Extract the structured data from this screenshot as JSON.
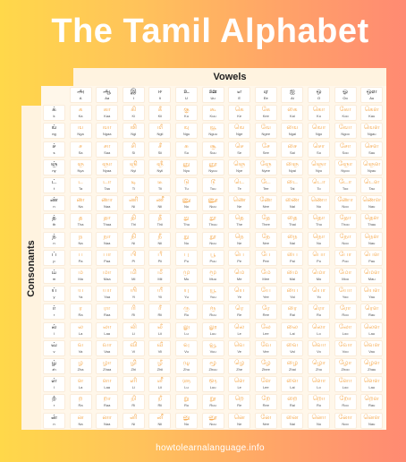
{
  "title": "The Tamil Alphabet",
  "vowels_label": "Vowels",
  "consonants_label": "Consonants",
  "footer": "howtolearnalanguage.info",
  "vowels": {
    "tamil": [
      "அ",
      "ஆ",
      "இ",
      "ஈ",
      "உ",
      "ஊ",
      "எ",
      "ஏ",
      "ஐ",
      "ஒ",
      "ஓ",
      "ஔ"
    ],
    "roman": [
      "A",
      "Aa",
      "I",
      "Ii",
      "U",
      "Uu",
      "E",
      "Ee",
      "Ai",
      "O",
      "Oo",
      "Au"
    ]
  },
  "rows": [
    {
      "head": {
        "tamil": "க்",
        "roman": "k"
      },
      "tamil": [
        "க",
        "கா",
        "கி",
        "கீ",
        "கு",
        "கூ",
        "கெ",
        "கே",
        "கை",
        "கொ",
        "கோ",
        "கௌ"
      ],
      "roman": [
        "Ka",
        "Kaa",
        "Ki",
        "Kii",
        "Ku",
        "Kuu",
        "Ke",
        "Kee",
        "Kai",
        "Ko",
        "Koo",
        "Kau"
      ]
    },
    {
      "head": {
        "tamil": "ங்",
        "roman": "ng"
      },
      "tamil": [
        "ங",
        "ஙா",
        "ஙி",
        "ஙீ",
        "ஙு",
        "ஙூ",
        "ஙெ",
        "ஙே",
        "ஙை",
        "ஙொ",
        "ஙோ",
        "ஙௌ"
      ],
      "roman": [
        "Nga",
        "Ngaa",
        "Ngi",
        "Ngii",
        "Ngu",
        "Nguu",
        "Nge",
        "Ngee",
        "Ngai",
        "Ngo",
        "Ngoo",
        "Ngau"
      ]
    },
    {
      "head": {
        "tamil": "ச்",
        "roman": "s"
      },
      "tamil": [
        "ச",
        "சா",
        "சி",
        "சீ",
        "சு",
        "சூ",
        "செ",
        "சே",
        "சை",
        "சொ",
        "சோ",
        "சௌ"
      ],
      "roman": [
        "Sa",
        "Saa",
        "Si",
        "Sii",
        "Su",
        "Suu",
        "Se",
        "See",
        "Sai",
        "So",
        "Soo",
        "Sau"
      ]
    },
    {
      "head": {
        "tamil": "ஞ்",
        "roman": "ny"
      },
      "tamil": [
        "ஞ",
        "ஞா",
        "ஞி",
        "ஞீ",
        "ஞு",
        "ஞூ",
        "ஞெ",
        "ஞே",
        "ஞை",
        "ஞொ",
        "ஞோ",
        "ஞௌ"
      ],
      "roman": [
        "Nya",
        "Nyaa",
        "Nyi",
        "Nyii",
        "Nyu",
        "Nyuu",
        "Nye",
        "Nyee",
        "Nyai",
        "Nyo",
        "Nyoo",
        "Nyau"
      ]
    },
    {
      "head": {
        "tamil": "ட்",
        "roman": "t"
      },
      "tamil": [
        "ட",
        "டா",
        "டி",
        "டீ",
        "டு",
        "டூ",
        "டெ",
        "டே",
        "டை",
        "டொ",
        "டோ",
        "டௌ"
      ],
      "roman": [
        "Ta",
        "Taa",
        "Ti",
        "Tii",
        "Tu",
        "Tuu",
        "Te",
        "Tee",
        "Tai",
        "To",
        "Too",
        "Tau"
      ]
    },
    {
      "head": {
        "tamil": "ண்",
        "roman": "n"
      },
      "tamil": [
        "ண",
        "ணா",
        "ணி",
        "ணீ",
        "ணு",
        "ணூ",
        "ணெ",
        "ணே",
        "ணை",
        "ணொ",
        "ணோ",
        "ணௌ"
      ],
      "roman": [
        "Na",
        "Naa",
        "Ni",
        "Nii",
        "Nu",
        "Nuu",
        "Ne",
        "Nee",
        "Nai",
        "No",
        "Noo",
        "Nau"
      ]
    },
    {
      "head": {
        "tamil": "த்",
        "roman": "th"
      },
      "tamil": [
        "த",
        "தா",
        "தி",
        "தீ",
        "து",
        "தூ",
        "தெ",
        "தே",
        "தை",
        "தொ",
        "தோ",
        "தௌ"
      ],
      "roman": [
        "Tha",
        "Thaa",
        "Thi",
        "Thii",
        "Thu",
        "Thuu",
        "The",
        "Thee",
        "Thai",
        "Tho",
        "Thoo",
        "Thau"
      ]
    },
    {
      "head": {
        "tamil": "ந்",
        "roman": "n"
      },
      "tamil": [
        "ந",
        "நா",
        "நி",
        "நீ",
        "நு",
        "நூ",
        "நெ",
        "நே",
        "நை",
        "நொ",
        "நோ",
        "நௌ"
      ],
      "roman": [
        "Na",
        "Naa",
        "Ni",
        "Nii",
        "Nu",
        "Nuu",
        "Ne",
        "Nee",
        "Nai",
        "No",
        "Noo",
        "Nau"
      ]
    },
    {
      "head": {
        "tamil": "ப்",
        "roman": "p"
      },
      "tamil": [
        "ப",
        "பா",
        "பி",
        "பீ",
        "பு",
        "பூ",
        "பெ",
        "பே",
        "பை",
        "பொ",
        "போ",
        "பௌ"
      ],
      "roman": [
        "Pa",
        "Paa",
        "Pi",
        "Pii",
        "Pu",
        "Puu",
        "Pe",
        "Pee",
        "Pai",
        "Po",
        "Poo",
        "Pau"
      ]
    },
    {
      "head": {
        "tamil": "ம்",
        "roman": "m"
      },
      "tamil": [
        "ம",
        "மா",
        "மி",
        "மீ",
        "மு",
        "மூ",
        "மெ",
        "மே",
        "மை",
        "மொ",
        "மோ",
        "மௌ"
      ],
      "roman": [
        "Ma",
        "Maa",
        "Mi",
        "Mii",
        "Mu",
        "Muu",
        "Me",
        "Mee",
        "Mai",
        "Mo",
        "Moo",
        "Mau"
      ]
    },
    {
      "head": {
        "tamil": "ய்",
        "roman": "y"
      },
      "tamil": [
        "ய",
        "யா",
        "யி",
        "யீ",
        "யு",
        "யூ",
        "யெ",
        "யே",
        "யை",
        "யொ",
        "யோ",
        "யௌ"
      ],
      "roman": [
        "Ya",
        "Yaa",
        "Yi",
        "Yii",
        "Yu",
        "Yuu",
        "Ye",
        "Yee",
        "Yai",
        "Yo",
        "Yoo",
        "Yau"
      ]
    },
    {
      "head": {
        "tamil": "ர்",
        "roman": "r"
      },
      "tamil": [
        "ர",
        "ரா",
        "ரி",
        "ரீ",
        "ரு",
        "ரூ",
        "ரெ",
        "ரே",
        "ரை",
        "ரொ",
        "ரோ",
        "ரௌ"
      ],
      "roman": [
        "Ra",
        "Raa",
        "Ri",
        "Rii",
        "Ru",
        "Ruu",
        "Re",
        "Ree",
        "Rai",
        "Ro",
        "Roo",
        "Rau"
      ]
    },
    {
      "head": {
        "tamil": "ல்",
        "roman": "l"
      },
      "tamil": [
        "ல",
        "லா",
        "லி",
        "லீ",
        "லு",
        "லூ",
        "லெ",
        "லே",
        "லை",
        "லொ",
        "லோ",
        "லௌ"
      ],
      "roman": [
        "La",
        "Laa",
        "Li",
        "Lii",
        "Lu",
        "Luu",
        "Le",
        "Lee",
        "Lai",
        "Lo",
        "Loo",
        "Lau"
      ]
    },
    {
      "head": {
        "tamil": "வ்",
        "roman": "v"
      },
      "tamil": [
        "வ",
        "வா",
        "வி",
        "வீ",
        "வு",
        "வூ",
        "வெ",
        "வே",
        "வை",
        "வொ",
        "வோ",
        "வௌ"
      ],
      "roman": [
        "Va",
        "Vaa",
        "Vi",
        "Vii",
        "Vu",
        "Vuu",
        "Ve",
        "Vee",
        "Vai",
        "Vo",
        "Voo",
        "Vau"
      ]
    },
    {
      "head": {
        "tamil": "ழ்",
        "roman": "zh"
      },
      "tamil": [
        "ழ",
        "ழா",
        "ழி",
        "ழீ",
        "ழு",
        "ழூ",
        "ழெ",
        "ழே",
        "ழை",
        "ழொ",
        "ழோ",
        "ழௌ"
      ],
      "roman": [
        "Zha",
        "Zhaa",
        "Zhi",
        "Zhii",
        "Zhu",
        "Zhuu",
        "Zhe",
        "Zhee",
        "Zhai",
        "Zho",
        "Zhoo",
        "Zhau"
      ]
    },
    {
      "head": {
        "tamil": "ள்",
        "roman": "l"
      },
      "tamil": [
        "ள",
        "ளா",
        "ளி",
        "ளீ",
        "ளு",
        "ளூ",
        "ளெ",
        "ளே",
        "ளை",
        "ளொ",
        "ளோ",
        "ளௌ"
      ],
      "roman": [
        "La",
        "Laa",
        "Li",
        "Lii",
        "Lu",
        "Luu",
        "Le",
        "Lee",
        "Lai",
        "Lo",
        "Loo",
        "Lau"
      ]
    },
    {
      "head": {
        "tamil": "ற்",
        "roman": "r"
      },
      "tamil": [
        "ற",
        "றா",
        "றி",
        "றீ",
        "று",
        "றூ",
        "றெ",
        "றே",
        "றை",
        "றொ",
        "றோ",
        "றௌ"
      ],
      "roman": [
        "Ra",
        "Raa",
        "Ri",
        "Rii",
        "Ru",
        "Ruu",
        "Re",
        "Ree",
        "Rai",
        "Ro",
        "Roo",
        "Rau"
      ]
    },
    {
      "head": {
        "tamil": "ன்",
        "roman": "n"
      },
      "tamil": [
        "ன",
        "னா",
        "னி",
        "னீ",
        "னு",
        "னூ",
        "னெ",
        "னே",
        "னை",
        "னொ",
        "னோ",
        "னௌ"
      ],
      "roman": [
        "Na",
        "Naa",
        "Ni",
        "Nii",
        "Nu",
        "Nuu",
        "Ne",
        "Nee",
        "Nai",
        "No",
        "Noo",
        "Nau"
      ]
    }
  ]
}
